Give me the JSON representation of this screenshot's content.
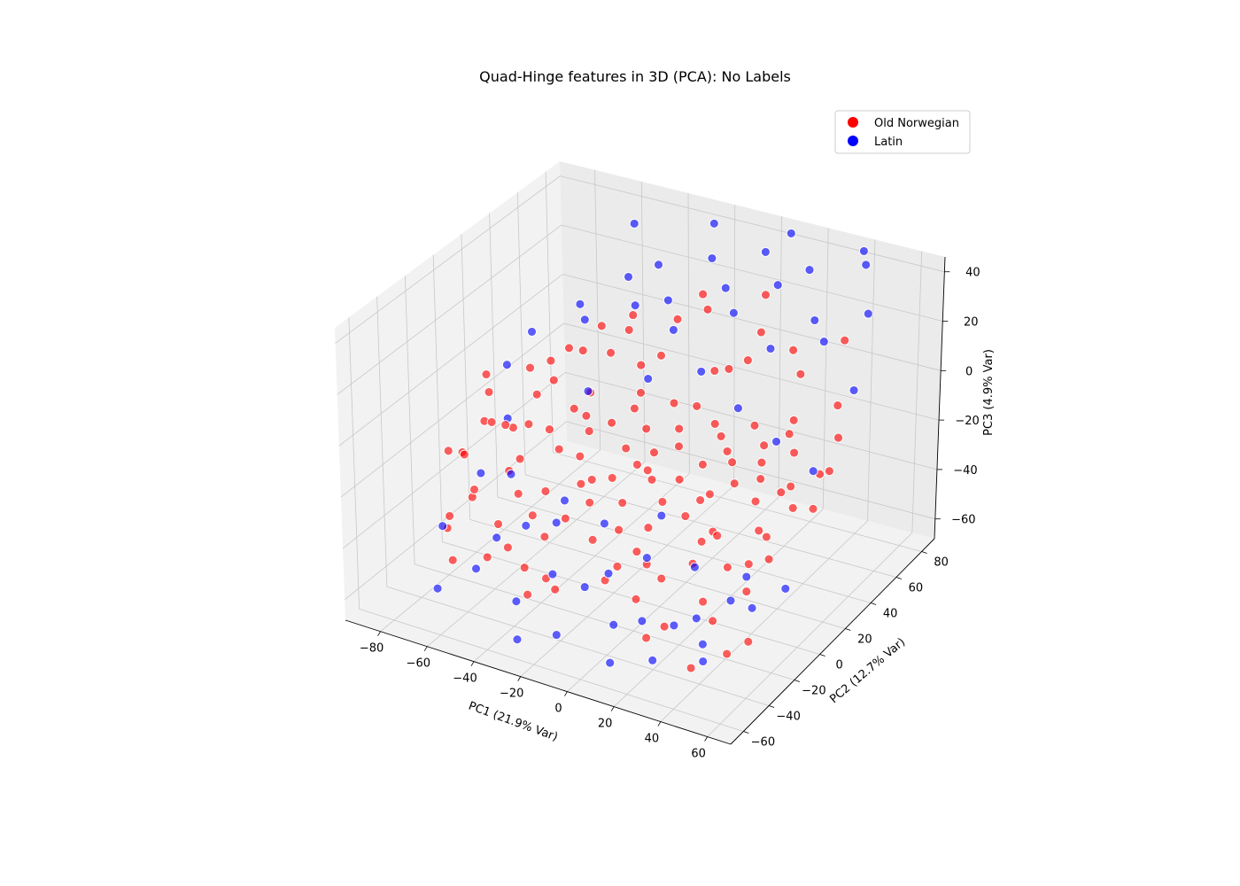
{
  "chart_data": {
    "type": "scatter",
    "projection": "3d",
    "title": "Quad-Hinge features in 3D (PCA): No Labels",
    "xlabel": "PC1 (21.9% Var)",
    "ylabel": "PC2 (12.7% Var)",
    "zlabel": "PC3 (4.9% Var)",
    "xlim": [
      -95,
      70
    ],
    "ylim": [
      -70,
      90
    ],
    "zlim": [
      -68,
      46
    ],
    "xticks": [
      -80,
      -60,
      -40,
      -20,
      0,
      20,
      40,
      60
    ],
    "yticks": [
      -60,
      -40,
      -20,
      0,
      20,
      40,
      60,
      80
    ],
    "zticks": [
      -60,
      -40,
      -20,
      0,
      20,
      40
    ],
    "grid": true,
    "legend_position": "top-right",
    "series": [
      {
        "name": "Old Norwegian",
        "color": "#ff0000",
        "points": [
          [
            -88,
            -5,
            -28
          ],
          [
            -85,
            0,
            -30
          ],
          [
            -80,
            8,
            -20
          ],
          [
            -78,
            -10,
            -25
          ],
          [
            -75,
            5,
            -18
          ],
          [
            -72,
            -15,
            -38
          ],
          [
            -70,
            12,
            -22
          ],
          [
            -68,
            -20,
            -32
          ],
          [
            -66,
            0,
            -15
          ],
          [
            -63,
            18,
            -10
          ],
          [
            -60,
            -8,
            -28
          ],
          [
            -58,
            22,
            -5
          ],
          [
            -55,
            -25,
            -40
          ],
          [
            -53,
            10,
            -18
          ],
          [
            -50,
            30,
            5
          ],
          [
            -48,
            -30,
            -45
          ],
          [
            -46,
            5,
            -22
          ],
          [
            -44,
            25,
            -8
          ],
          [
            -42,
            -12,
            -30
          ],
          [
            -40,
            15,
            -12
          ],
          [
            -38,
            -35,
            -48
          ],
          [
            -36,
            40,
            12
          ],
          [
            -34,
            0,
            -20
          ],
          [
            -32,
            20,
            -15
          ],
          [
            -30,
            -18,
            -35
          ],
          [
            -28,
            35,
            2
          ],
          [
            -26,
            -5,
            -25
          ],
          [
            -24,
            28,
            -5
          ],
          [
            -22,
            -40,
            -50
          ],
          [
            -20,
            10,
            -18
          ],
          [
            -18,
            45,
            18
          ],
          [
            -16,
            -22,
            -38
          ],
          [
            -14,
            8,
            -22
          ],
          [
            -12,
            32,
            -8
          ],
          [
            -10,
            -10,
            -28
          ],
          [
            -8,
            50,
            22
          ],
          [
            -6,
            2,
            -20
          ],
          [
            -4,
            22,
            -12
          ],
          [
            -2,
            -28,
            -42
          ],
          [
            0,
            15,
            -15
          ],
          [
            2,
            38,
            5
          ],
          [
            4,
            -15,
            -32
          ],
          [
            6,
            5,
            -22
          ],
          [
            8,
            28,
            -10
          ],
          [
            10,
            -35,
            -48
          ],
          [
            12,
            12,
            -18
          ],
          [
            14,
            42,
            10
          ],
          [
            16,
            -8,
            -28
          ],
          [
            18,
            20,
            -15
          ],
          [
            20,
            -45,
            -55
          ],
          [
            22,
            0,
            -22
          ],
          [
            24,
            30,
            -8
          ],
          [
            26,
            -20,
            -38
          ],
          [
            28,
            8,
            -20
          ],
          [
            30,
            48,
            15
          ],
          [
            32,
            -12,
            -30
          ],
          [
            34,
            18,
            -15
          ],
          [
            36,
            -30,
            -45
          ],
          [
            38,
            35,
            -5
          ],
          [
            40,
            3,
            -22
          ],
          [
            42,
            -50,
            -58
          ],
          [
            44,
            25,
            -12
          ],
          [
            46,
            -5,
            -28
          ],
          [
            48,
            55,
            20
          ],
          [
            50,
            12,
            -18
          ],
          [
            52,
            -25,
            -40
          ],
          [
            54,
            40,
            2
          ],
          [
            56,
            -15,
            -32
          ],
          [
            58,
            20,
            -15
          ],
          [
            60,
            -38,
            -50
          ],
          [
            62,
            8,
            -22
          ],
          [
            -82,
            15,
            -12
          ],
          [
            -76,
            -25,
            -42
          ],
          [
            -64,
            30,
            -2
          ],
          [
            -57,
            -5,
            -24
          ],
          [
            -49,
            42,
            10
          ],
          [
            -43,
            -20,
            -36
          ],
          [
            -37,
            12,
            -16
          ],
          [
            -31,
            -45,
            -52
          ],
          [
            -25,
            25,
            -10
          ],
          [
            -19,
            -2,
            -24
          ],
          [
            -13,
            55,
            25
          ],
          [
            -7,
            -18,
            -34
          ],
          [
            -1,
            30,
            -6
          ],
          [
            5,
            -6,
            -26
          ],
          [
            11,
            60,
            28
          ],
          [
            17,
            -28,
            -42
          ],
          [
            23,
            15,
            -16
          ],
          [
            29,
            -10,
            -30
          ],
          [
            35,
            45,
            8
          ],
          [
            41,
            -20,
            -36
          ],
          [
            47,
            10,
            -20
          ],
          [
            53,
            -42,
            -54
          ],
          [
            59,
            32,
            -6
          ],
          [
            -86,
            20,
            -8
          ],
          [
            -74,
            -30,
            -44
          ],
          [
            -62,
            10,
            -18
          ],
          [
            -52,
            -15,
            -32
          ],
          [
            -41,
            35,
            4
          ],
          [
            -29,
            -8,
            -26
          ],
          [
            -17,
            20,
            -14
          ],
          [
            -5,
            -32,
            -46
          ],
          [
            7,
            40,
            6
          ],
          [
            19,
            -2,
            -24
          ],
          [
            31,
            25,
            -12
          ],
          [
            43,
            -35,
            -48
          ],
          [
            55,
            5,
            -22
          ],
          [
            -70,
            25,
            -4
          ],
          [
            -54,
            -35,
            -48
          ],
          [
            -39,
            48,
            14
          ],
          [
            -23,
            -12,
            -30
          ],
          [
            -9,
            12,
            -18
          ],
          [
            3,
            -22,
            -38
          ],
          [
            15,
            50,
            18
          ],
          [
            27,
            -15,
            -32
          ],
          [
            39,
            30,
            -8
          ],
          [
            51,
            -8,
            -28
          ],
          [
            -66,
            -40,
            -50
          ],
          [
            -47,
            18,
            -12
          ],
          [
            -35,
            -25,
            -40
          ],
          [
            -21,
            38,
            6
          ],
          [
            -3,
            0,
            -22
          ],
          [
            13,
            24,
            -12
          ],
          [
            25,
            -40,
            -52
          ],
          [
            37,
            12,
            -18
          ],
          [
            49,
            -18,
            -34
          ],
          [
            61,
            22,
            -14
          ],
          [
            -59,
            35,
            2
          ],
          [
            -27,
            -38,
            -48
          ],
          [
            9,
            -25,
            -40
          ]
        ]
      },
      {
        "name": "Latin",
        "color": "#0000ff",
        "points": [
          [
            -80,
            25,
            -5
          ],
          [
            -70,
            -40,
            -38
          ],
          [
            -60,
            45,
            15
          ],
          [
            -50,
            -50,
            -45
          ],
          [
            -45,
            55,
            25
          ],
          [
            -40,
            -30,
            -35
          ],
          [
            -35,
            60,
            30
          ],
          [
            -30,
            -55,
            -50
          ],
          [
            -25,
            50,
            22
          ],
          [
            -20,
            -45,
            -42
          ],
          [
            -15,
            65,
            35
          ],
          [
            -10,
            -60,
            -55
          ],
          [
            -5,
            58,
            28
          ],
          [
            0,
            -38,
            -40
          ],
          [
            5,
            70,
            40
          ],
          [
            10,
            -52,
            -50
          ],
          [
            15,
            62,
            32
          ],
          [
            20,
            -48,
            -48
          ],
          [
            25,
            68,
            38
          ],
          [
            30,
            -58,
            -55
          ],
          [
            35,
            55,
            25
          ],
          [
            40,
            -42,
            -45
          ],
          [
            45,
            75,
            42
          ],
          [
            50,
            -55,
            -52
          ],
          [
            55,
            60,
            30
          ],
          [
            60,
            -35,
            -40
          ],
          [
            -75,
            35,
            5
          ],
          [
            -65,
            -20,
            -25
          ],
          [
            -55,
            40,
            12
          ],
          [
            -48,
            -38,
            -38
          ],
          [
            -38,
            48,
            18
          ],
          [
            -28,
            -28,
            -32
          ],
          [
            -18,
            42,
            15
          ],
          [
            -8,
            -42,
            -45
          ],
          [
            2,
            52,
            22
          ],
          [
            12,
            -30,
            -35
          ],
          [
            22,
            45,
            15
          ],
          [
            32,
            -45,
            -48
          ],
          [
            42,
            50,
            20
          ],
          [
            52,
            -25,
            -35
          ],
          [
            62,
            38,
            10
          ],
          [
            -68,
            5,
            -15
          ],
          [
            -58,
            -10,
            -28
          ],
          [
            -42,
            20,
            -5
          ],
          [
            -32,
            -15,
            -30
          ],
          [
            -22,
            30,
            0
          ],
          [
            -12,
            -20,
            -32
          ],
          [
            -2,
            35,
            5
          ],
          [
            8,
            -12,
            -28
          ],
          [
            18,
            28,
            -2
          ],
          [
            28,
            -22,
            -38
          ],
          [
            38,
            22,
            -8
          ],
          [
            48,
            -30,
            -42
          ],
          [
            58,
            15,
            -12
          ],
          [
            -50,
            68,
            40
          ],
          [
            -20,
            75,
            44
          ],
          [
            10,
            80,
            45
          ],
          [
            40,
            82,
            44
          ],
          [
            -62,
            -58,
            -52
          ],
          [
            -24,
            -65,
            -58
          ],
          [
            14,
            -62,
            -58
          ],
          [
            46,
            -48,
            -50
          ],
          [
            66,
            -20,
            -38
          ]
        ]
      }
    ]
  },
  "legend": {
    "items": [
      {
        "label": "Old Norwegian",
        "color": "#ff0000"
      },
      {
        "label": "Latin",
        "color": "#0000ff"
      }
    ]
  }
}
